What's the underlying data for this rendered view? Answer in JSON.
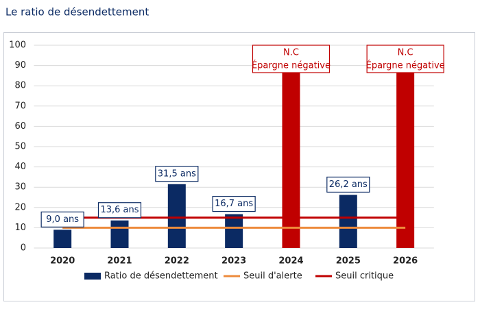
{
  "chart_data": {
    "type": "bar",
    "title": "Le ratio de désendettement",
    "categories": [
      "2020",
      "2021",
      "2022",
      "2023",
      "2024",
      "2025",
      "2026"
    ],
    "series": [
      {
        "name": "Ratio de désendettement",
        "type": "bar",
        "color": "#0b2a63",
        "point_colors": [
          "#0b2a63",
          "#0b2a63",
          "#0b2a63",
          "#0b2a63",
          "#c00000",
          "#0b2a63",
          "#c00000"
        ],
        "values": [
          9.0,
          13.6,
          31.5,
          16.7,
          100,
          26.2,
          100
        ],
        "value_labels": [
          "9,0 ans",
          "13,6 ans",
          "31,5 ans",
          "16,7 ans",
          [
            "N.C",
            "Épargne négative"
          ],
          "26,2 ans",
          [
            "N.C",
            "Épargne négative"
          ]
        ]
      },
      {
        "name": "Seuil d'alerte",
        "type": "line",
        "color": "#ed8b3c",
        "values": [
          10,
          10,
          10,
          10,
          10,
          10,
          10
        ]
      },
      {
        "name": "Seuil critique",
        "type": "line",
        "color": "#c00000",
        "values": [
          15,
          15,
          15,
          15,
          15,
          15,
          15
        ]
      }
    ],
    "ylim": [
      0,
      100
    ],
    "yticks": [
      0,
      10,
      20,
      30,
      40,
      50,
      60,
      70,
      80,
      90,
      100
    ],
    "grid": true,
    "legend": "bottom"
  }
}
